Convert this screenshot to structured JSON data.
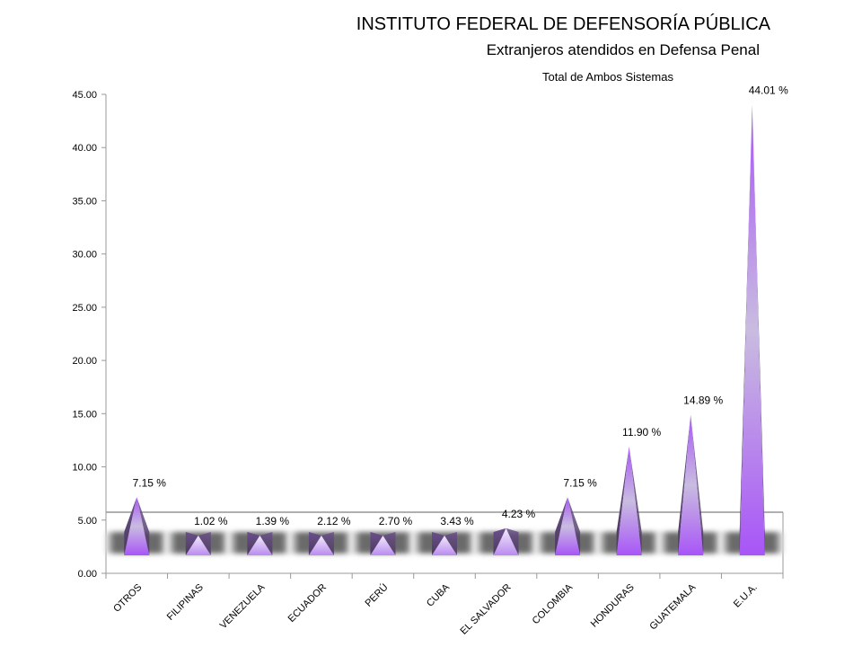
{
  "header": {
    "title": "INSTITUTO FEDERAL DE DEFENSORÍA PÚBLICA",
    "subtitle": "Extranjeros atendidos en Defensa Penal",
    "note": "Total de Ambos Sistemas"
  },
  "colors": {
    "bar_top": "#a855f7",
    "bar_mid": "#c9bce0",
    "bar_dark": "#4a3a5c",
    "bar_light": "#f3ecfb",
    "axis": "#999999"
  },
  "chart_data": {
    "type": "bar",
    "categories": [
      "OTROS",
      "FILIPINAS",
      "VENEZUELA",
      "ECUADOR",
      "PERÚ",
      "CUBA",
      "EL SALVADOR",
      "COLOMBIA",
      "HONDURAS",
      "GUATEMALA",
      "E.U.A."
    ],
    "values": [
      7.15,
      1.02,
      1.39,
      2.12,
      2.7,
      3.43,
      4.23,
      7.15,
      11.9,
      14.89,
      44.01
    ],
    "data_labels": [
      "7.15 %",
      "1.02 %",
      "1.39 %",
      "2.12 %",
      "2.70 %",
      "3.43 %",
      "4.23 %",
      "7.15 %",
      "11.90 %",
      "14.89 %",
      "44.01 %"
    ],
    "yticks": [
      "0.00",
      "5.00",
      "10.00",
      "15.00",
      "20.00",
      "25.00",
      "30.00",
      "35.00",
      "40.00",
      "45.00"
    ],
    "ylim": [
      0,
      45
    ],
    "grid": false,
    "legend": "none"
  }
}
